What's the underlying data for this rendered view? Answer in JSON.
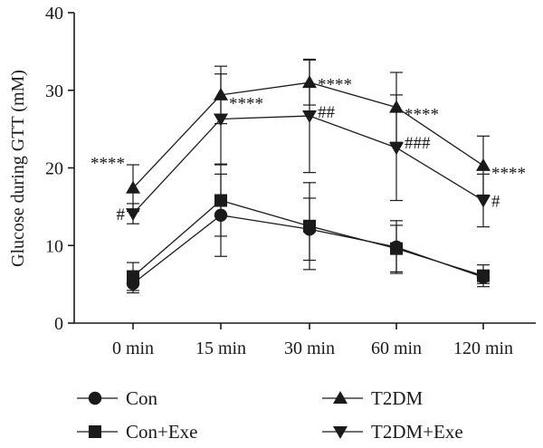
{
  "chart_data": {
    "type": "line",
    "ylabel": "Glucose during GTT (mM)",
    "xlabel": "",
    "categories": [
      "0 min",
      "15 min",
      "30 min",
      "60 min",
      "120 min"
    ],
    "ylim": [
      0,
      40
    ],
    "yticks": [
      0,
      10,
      20,
      30,
      40
    ],
    "grid": false,
    "legend_position": "bottom",
    "series": [
      {
        "name": "Con",
        "marker": "circle",
        "values": [
          5.1,
          13.9,
          12.1,
          9.8,
          5.9
        ],
        "error": [
          1.2,
          5.3,
          4.0,
          3.4,
          0.8
        ]
      },
      {
        "name": "Con+Exe",
        "marker": "square",
        "values": [
          6.0,
          15.8,
          12.5,
          9.6,
          6.1
        ],
        "error": [
          1.8,
          4.6,
          5.6,
          3.0,
          1.4
        ]
      },
      {
        "name": "T2DM",
        "marker": "triangle-up",
        "values": [
          17.4,
          29.4,
          31.0,
          27.8,
          20.3
        ],
        "error": [
          3.0,
          3.7,
          2.9,
          4.5,
          3.8
        ]
      },
      {
        "name": "T2DM+Exe",
        "marker": "triangle-down",
        "values": [
          14.1,
          26.3,
          26.7,
          22.6,
          15.8
        ],
        "error": [
          1.3,
          5.8,
          7.3,
          6.8,
          3.4
        ]
      }
    ],
    "annotations": [
      {
        "text": "****",
        "category": "0 min",
        "y": 21.3,
        "align": "end"
      },
      {
        "text": "#",
        "category": "0 min",
        "y": 14.1,
        "align": "end"
      },
      {
        "text": "****",
        "category": "15 min",
        "y": 29.0,
        "align": "start"
      },
      {
        "text": "****",
        "category": "30 min",
        "y": 31.4,
        "align": "start"
      },
      {
        "text": "##",
        "category": "30 min",
        "y": 27.3,
        "align": "start"
      },
      {
        "text": "****",
        "category": "60 min",
        "y": 27.6,
        "align": "start"
      },
      {
        "text": "###",
        "category": "60 min",
        "y": 23.3,
        "align": "start"
      },
      {
        "text": "****",
        "category": "120 min",
        "y": 20.0,
        "align": "start"
      },
      {
        "text": "#",
        "category": "120 min",
        "y": 15.8,
        "align": "start"
      }
    ]
  }
}
